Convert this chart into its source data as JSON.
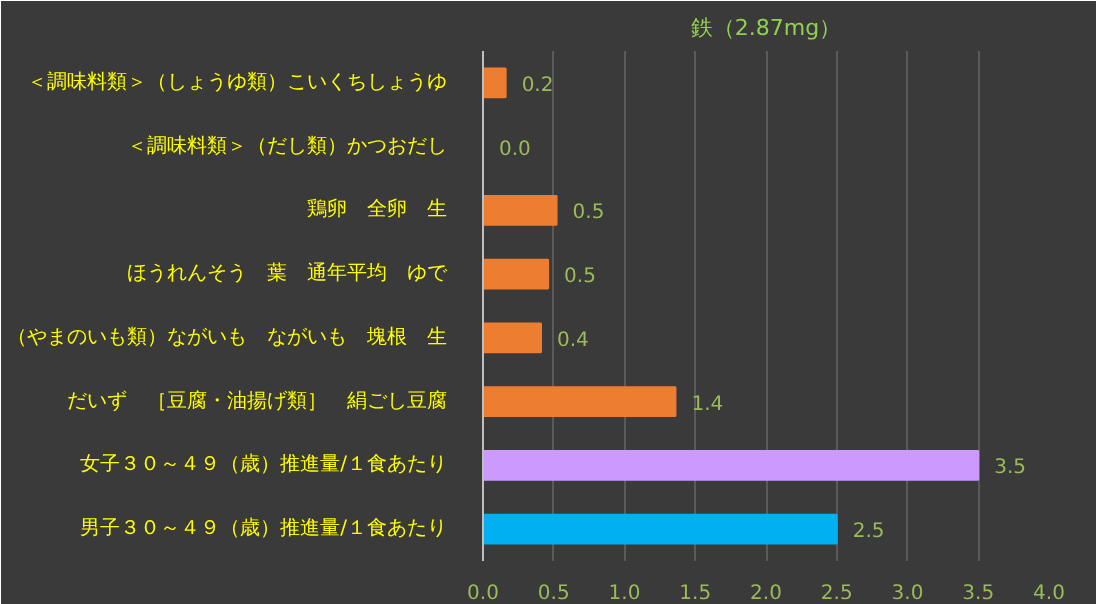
{
  "chart_data": {
    "type": "bar",
    "orientation": "horizontal",
    "title": "鉄（2.87mg）",
    "categories": [
      "＜調味料類＞（しょうゆ類）こいくちしょうゆ",
      "＜調味料類＞（だし類）かつおだし",
      "鶏卵　全卵　生",
      "ほうれんそう　葉　通年平均　ゆで",
      "（やまのいも類）ながいも　ながいも　塊根　生",
      "だいず　［豆腐・油揚げ類］　絹ごし豆腐",
      "女子３０～４９（歳）推進量/１食あたり",
      "男子３０～４９（歳）推進量/１食あたり"
    ],
    "values": [
      0.16,
      0.0,
      0.52,
      0.46,
      0.41,
      1.36,
      3.5,
      2.5
    ],
    "value_labels": [
      "0.2",
      "0.0",
      "0.5",
      "0.5",
      "0.4",
      "1.4",
      "3.5",
      "2.5"
    ],
    "colors": [
      "#ed7d31",
      "#ed7d31",
      "#ed7d31",
      "#ed7d31",
      "#ed7d31",
      "#ed7d31",
      "#cc99ff",
      "#00b0f0"
    ],
    "xlim": [
      0,
      4
    ],
    "xticks": [
      "0.0",
      "0.5",
      "1.0",
      "1.5",
      "2.0",
      "2.5",
      "3.0",
      "3.5",
      "4.0"
    ],
    "grid": "x"
  }
}
